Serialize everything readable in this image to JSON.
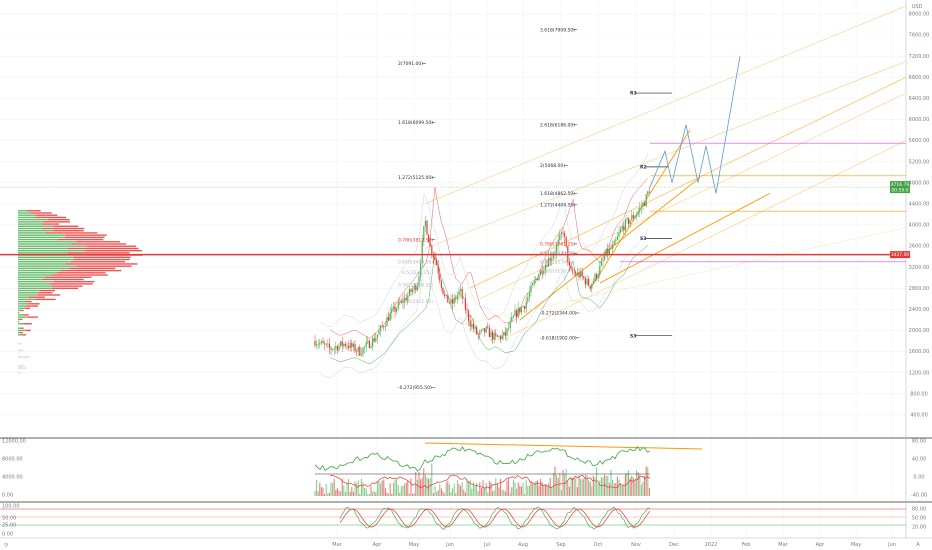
{
  "currency": "USD",
  "chart_data": [
    {
      "type": "candlestick",
      "price_axis": {
        "ticks": [
          "8000.00",
          "7600.00",
          "7200.00",
          "6800.00",
          "6400.00",
          "6000.00",
          "5600.00",
          "5200.00",
          "4800.00",
          "4400.00",
          "4000.00",
          "3600.00",
          "3200.00",
          "2800.00",
          "2400.00",
          "2000.00",
          "1600.00",
          "1200.00",
          "800.00",
          "400.00"
        ],
        "tick_values": [
          8000,
          7600,
          7200,
          6800,
          6400,
          6000,
          5600,
          5200,
          4800,
          4400,
          4000,
          3600,
          3200,
          2800,
          2400,
          2000,
          1600,
          1200,
          800,
          400
        ],
        "ylim": [
          150,
          8150
        ]
      },
      "time_axis": {
        "ticks": [
          "Mar",
          "Apr",
          "May",
          "Jun",
          "Jul",
          "Aug",
          "Sep",
          "Oct",
          "Nov",
          "Dec",
          "2022",
          "Feb",
          "Mar",
          "Apr",
          "May",
          "Jun"
        ]
      },
      "current_price": {
        "label": "4716.79",
        "value": 4717,
        "sub_label": "00:59:0"
      },
      "red_level": {
        "label": "3437.00",
        "value": 3437
      },
      "fib_levels": [
        {
          "label": "3.618(7909.50)",
          "value": 7700,
          "group": "upper"
        },
        {
          "label": "2.618(6186.00)",
          "value": 5900,
          "group": "upper"
        },
        {
          "label": "2(5068.00)",
          "value": 5130,
          "group": "upper"
        },
        {
          "label": "1.618(4862.50)",
          "value": 4600,
          "group": "upper"
        },
        {
          "label": "1.272(4404.50)",
          "value": 4380,
          "group": "upper"
        },
        {
          "label": "0.786(3761.25)",
          "value": 3640,
          "group": "upper"
        },
        {
          "label": "0.618(3530.00)",
          "value": 3460,
          "group": "upper"
        },
        {
          "label": "-0.272(2344.00)",
          "value": 2330,
          "group": "upper"
        },
        {
          "label": "-0.618(1902.00)",
          "value": 1860,
          "group": "upper"
        },
        {
          "label": "2(7091.00)",
          "value": 7060,
          "group": "lower"
        },
        {
          "label": "1.618(6099.50)",
          "value": 5940,
          "group": "lower"
        },
        {
          "label": "1.272(5125.00)",
          "value": 4900,
          "group": "lower"
        },
        {
          "label": "0.786(3812.50)",
          "value": 3720,
          "group": "lower"
        },
        {
          "label": "-0.272(955.50)",
          "value": 920,
          "group": "lower"
        }
      ],
      "fib_faint_labels": [
        "0.618(3440.00)",
        "0.5(3124.25)",
        "0.382(2808.50)",
        "0.236(2422.00)",
        "0.618(3530.00)",
        "0.5(3311.00)",
        "0.382(3130.00)"
      ],
      "pivots": [
        {
          "label": "R3",
          "value": 6500
        },
        {
          "label": "R2",
          "value": 5100
        },
        {
          "label": "S3",
          "value": 3740
        },
        {
          "label": "S3",
          "value": 1900
        }
      ]
    },
    {
      "type": "bar",
      "name": "volume-panel",
      "ticks": [
        "12000.00",
        "8000.00",
        "4000.00",
        "0.00"
      ],
      "right_ticks": [
        "80.00",
        "40.00",
        "0.00",
        "-40.00"
      ]
    },
    {
      "type": "line",
      "name": "stochastic-panel",
      "ticks": [
        "100.00",
        "50.00",
        "25.00",
        "0.00"
      ],
      "right_ticks": [
        "80.00",
        "50.00",
        "20.00"
      ]
    }
  ],
  "colors": {
    "up": "#26a69a",
    "down": "#ef5350",
    "green_ind": "#4caf50",
    "red_ind": "#e53935",
    "orange": "#ff9800",
    "orange_light": "#ffcc80",
    "blue": "#5b9bd5",
    "magenta": "#e040fb",
    "grid": "#eef0f3"
  }
}
